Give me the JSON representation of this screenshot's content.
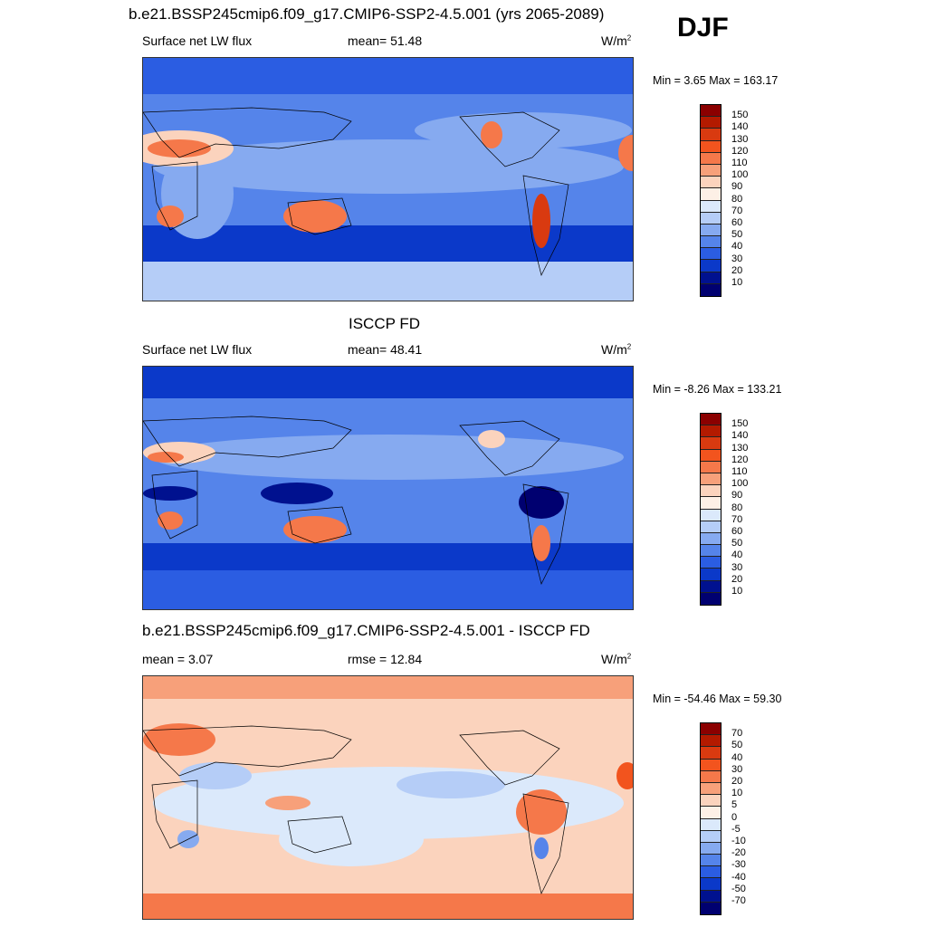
{
  "header": {
    "title": "b.e21.BSSP245cmip6.f09_g17.CMIP6-SSP2-4.5.001 (yrs 2065-2089)",
    "season": "DJF"
  },
  "panels": [
    {
      "id": "model",
      "title": "",
      "left_label": "Surface net LW flux",
      "center_label": "mean=  51.48",
      "units": "W/m",
      "units_sup": "2",
      "minmax": "Min =   3.65 Max = 163.17",
      "palette": "flux",
      "levels": [
        "150",
        "140",
        "130",
        "120",
        "110",
        "100",
        "90",
        "80",
        "70",
        "60",
        "50",
        "40",
        "30",
        "20",
        "10"
      ]
    },
    {
      "id": "obs",
      "title": "ISCCP FD",
      "left_label": "Surface net LW flux",
      "center_label": "mean=  48.41",
      "units": "W/m",
      "units_sup": "2",
      "minmax": "Min =  -8.26 Max = 133.21",
      "palette": "flux",
      "levels": [
        "150",
        "140",
        "130",
        "120",
        "110",
        "100",
        "90",
        "80",
        "70",
        "60",
        "50",
        "40",
        "30",
        "20",
        "10"
      ]
    },
    {
      "id": "diff",
      "title": "b.e21.BSSP245cmip6.f09_g17.CMIP6-SSP2-4.5.001 - ISCCP FD",
      "left_label": "mean =   3.07",
      "center_label": "rmse =  12.84",
      "units": "W/m",
      "units_sup": "2",
      "minmax": "Min = -54.46 Max =  59.30",
      "palette": "diff",
      "levels": [
        "70",
        "50",
        "40",
        "30",
        "20",
        "10",
        "5",
        "0",
        "-5",
        "-10",
        "-20",
        "-30",
        "-40",
        "-50",
        "-70"
      ]
    }
  ],
  "palettes": {
    "flux": [
      "#8b0000",
      "#b31a00",
      "#d93a10",
      "#f2541e",
      "#f5784a",
      "#f7a07a",
      "#fbd3bd",
      "#fdf0e6",
      "#dbe9fb",
      "#b5cdf7",
      "#86aaf0",
      "#5584ea",
      "#2b5de2",
      "#0b39c9",
      "#00118f",
      "#000070"
    ],
    "diff": [
      "#8b0000",
      "#b31a00",
      "#d93a10",
      "#f2541e",
      "#f5784a",
      "#f7a07a",
      "#fbd3bd",
      "#fdf0e6",
      "#dbe9fb",
      "#b5cdf7",
      "#86aaf0",
      "#5584ea",
      "#2b5de2",
      "#0b39c9",
      "#00118f",
      "#000070"
    ]
  },
  "map_colors": {
    "flux_base": "#5584ea",
    "flux_dark": "#0b39c9",
    "flux_light": "#b5cdf7",
    "flux_warm": "#f5784a",
    "diff_base": "#dbe9fb",
    "diff_warm": "#f7a07a",
    "diff_cool": "#86aaf0"
  }
}
